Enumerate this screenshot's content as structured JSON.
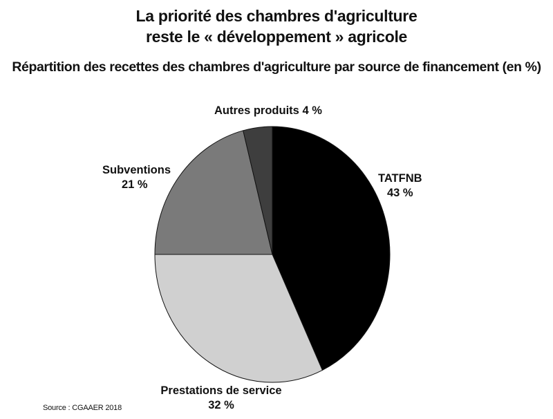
{
  "title_line1": "La priorité des chambres d'agriculture",
  "title_line2": "reste le « développement » agricole",
  "subtitle": "Répartition des recettes des chambres d'agriculture par source de financement (en %)",
  "source": "Source : CGAAER 2018",
  "chart_data": {
    "type": "pie",
    "title": "La priorité des chambres d'agriculture reste le « développement » agricole",
    "subtitle": "Répartition des recettes des chambres d'agriculture par source de financement (en %)",
    "slices": [
      {
        "label": "TATFNB",
        "value": 43,
        "value_text": "43 %",
        "color": "#000000"
      },
      {
        "label": "Prestations de service",
        "value": 32,
        "value_text": "32 %",
        "color": "#d0d0d0"
      },
      {
        "label": "Subventions",
        "value": 21,
        "value_text": "21 %",
        "color": "#7a7a7a"
      },
      {
        "label": "Autres produits",
        "value": 4,
        "value_text": "4 %",
        "color": "#3e3e3e"
      }
    ],
    "start": "12 o'clock",
    "direction": "clockwise"
  }
}
